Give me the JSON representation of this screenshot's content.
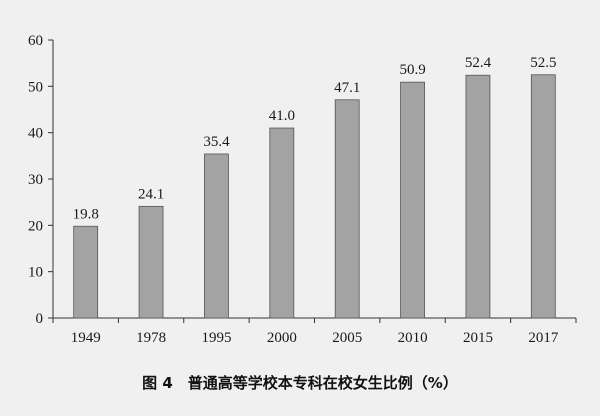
{
  "chart_data": {
    "type": "bar",
    "title": "图 4　普通高等学校本专科在校女生比例（%）",
    "categories": [
      "1949",
      "1978",
      "1995",
      "2000",
      "2005",
      "2010",
      "2015",
      "2017"
    ],
    "values": [
      19.8,
      24.1,
      35.4,
      41.0,
      47.1,
      50.9,
      52.4,
      52.5
    ],
    "value_labels": [
      "19.8",
      "24.1",
      "35.4",
      "41.0",
      "47.1",
      "50.9",
      "52.4",
      "52.5"
    ],
    "ylim": [
      0,
      60
    ],
    "yticks": [
      0,
      10,
      20,
      30,
      40,
      50,
      60
    ],
    "xlabel": "",
    "ylabel": "",
    "grid": false,
    "legend": "none"
  },
  "colors": {
    "bar_fill": "#a3a3a3",
    "bar_stroke": "#555555",
    "axis": "#333333",
    "background": "#f0f0f0"
  }
}
